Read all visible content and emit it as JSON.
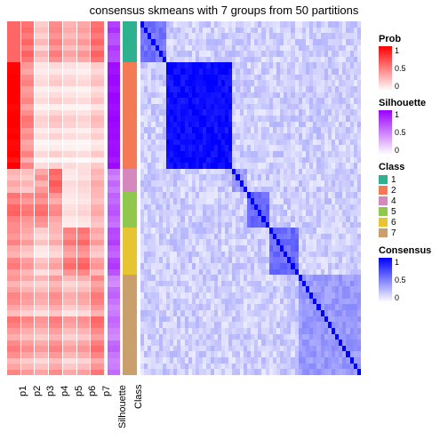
{
  "title": "consensus skmeans with 7 groups from 50 partitions",
  "p_labels": [
    "p1",
    "p2",
    "p3",
    "p4",
    "p5",
    "p6",
    "p7"
  ],
  "ann_labels": [
    "Silhouette",
    "Class"
  ],
  "n_rows": 60,
  "colors": {
    "prob_low": "#ffffff",
    "prob_high": "#ff0000",
    "sil_low": "#ffffff",
    "sil_high": "#9a00ff",
    "cons_low": "#ffffff",
    "cons_high": "#0000ff",
    "class": [
      "#2db18f",
      "#f47a56",
      "#d588be",
      "#90c84e",
      "#e7c532",
      "#c9a06b",
      "#888888"
    ]
  },
  "class_sizes": [
    7,
    18,
    4,
    6,
    8,
    17
  ],
  "silhouette": [
    0.75,
    0.82,
    0.7,
    0.68,
    0.79,
    0.73,
    0.71,
    0.95,
    0.93,
    0.97,
    0.96,
    0.92,
    0.98,
    0.97,
    0.94,
    0.96,
    0.99,
    0.97,
    0.95,
    0.96,
    0.93,
    0.94,
    0.95,
    0.9,
    0.96,
    0.55,
    0.48,
    0.6,
    0.52,
    0.62,
    0.58,
    0.65,
    0.68,
    0.6,
    0.55,
    0.72,
    0.7,
    0.76,
    0.65,
    0.6,
    0.74,
    0.78,
    0.68,
    0.5,
    0.45,
    0.58,
    0.62,
    0.55,
    0.48,
    0.52,
    0.6,
    0.57,
    0.5,
    0.46,
    0.59,
    0.63,
    0.54,
    0.49,
    0.51,
    0.58
  ],
  "partitions": [
    [
      0.6,
      0.6,
      0.6,
      0.6,
      0.6,
      0.6,
      0.6,
      0.98,
      0.99,
      1.0,
      1.0,
      1.0,
      1.0,
      1.0,
      0.97,
      0.99,
      1.0,
      1.0,
      0.98,
      1.0,
      0.96,
      0.97,
      0.99,
      0.92,
      1.0,
      0.3,
      0.25,
      0.35,
      0.28,
      0.55,
      0.48,
      0.6,
      0.62,
      0.5,
      0.45,
      0.45,
      0.4,
      0.5,
      0.35,
      0.3,
      0.48,
      0.52,
      0.38,
      0.42,
      0.3,
      0.38,
      0.48,
      0.45,
      0.35,
      0.25,
      0.55,
      0.5,
      0.4,
      0.32,
      0.46,
      0.52,
      0.44,
      0.28,
      0.36,
      0.48
    ],
    [
      0.55,
      0.58,
      0.52,
      0.6,
      0.5,
      0.62,
      0.54,
      0.4,
      0.35,
      0.45,
      0.5,
      0.38,
      0.42,
      0.48,
      0.36,
      0.44,
      0.55,
      0.52,
      0.4,
      0.46,
      0.35,
      0.38,
      0.5,
      0.32,
      0.48,
      0.25,
      0.2,
      0.3,
      0.22,
      0.48,
      0.4,
      0.52,
      0.55,
      0.42,
      0.38,
      0.35,
      0.3,
      0.4,
      0.25,
      0.2,
      0.38,
      0.42,
      0.28,
      0.35,
      0.22,
      0.3,
      0.4,
      0.38,
      0.28,
      0.18,
      0.48,
      0.42,
      0.32,
      0.25,
      0.38,
      0.45,
      0.36,
      0.2,
      0.28,
      0.4
    ],
    [
      0.2,
      0.25,
      0.18,
      0.28,
      0.15,
      0.3,
      0.22,
      0.1,
      0.08,
      0.12,
      0.15,
      0.06,
      0.1,
      0.14,
      0.05,
      0.11,
      0.18,
      0.16,
      0.08,
      0.12,
      0.04,
      0.06,
      0.15,
      0.03,
      0.14,
      0.35,
      0.45,
      0.3,
      0.4,
      0.5,
      0.42,
      0.55,
      0.58,
      0.45,
      0.4,
      0.2,
      0.15,
      0.25,
      0.1,
      0.08,
      0.22,
      0.28,
      0.12,
      0.3,
      0.18,
      0.25,
      0.35,
      0.32,
      0.22,
      0.12,
      0.42,
      0.38,
      0.28,
      0.2,
      0.33,
      0.4,
      0.3,
      0.15,
      0.24,
      0.36
    ],
    [
      0.45,
      0.48,
      0.42,
      0.5,
      0.4,
      0.52,
      0.44,
      0.15,
      0.1,
      0.18,
      0.22,
      0.08,
      0.14,
      0.2,
      0.06,
      0.16,
      0.25,
      0.22,
      0.1,
      0.18,
      0.05,
      0.08,
      0.2,
      0.04,
      0.18,
      0.6,
      0.55,
      0.65,
      0.58,
      0.4,
      0.32,
      0.45,
      0.48,
      0.35,
      0.3,
      0.3,
      0.25,
      0.35,
      0.2,
      0.15,
      0.32,
      0.38,
      0.22,
      0.4,
      0.28,
      0.35,
      0.45,
      0.42,
      0.32,
      0.22,
      0.52,
      0.48,
      0.38,
      0.3,
      0.43,
      0.5,
      0.4,
      0.25,
      0.34,
      0.46
    ],
    [
      0.3,
      0.33,
      0.27,
      0.35,
      0.25,
      0.37,
      0.29,
      0.12,
      0.08,
      0.15,
      0.18,
      0.06,
      0.11,
      0.16,
      0.05,
      0.13,
      0.2,
      0.18,
      0.08,
      0.14,
      0.04,
      0.06,
      0.16,
      0.03,
      0.15,
      0.1,
      0.08,
      0.15,
      0.12,
      0.1,
      0.08,
      0.12,
      0.15,
      0.09,
      0.07,
      0.5,
      0.45,
      0.55,
      0.4,
      0.35,
      0.52,
      0.58,
      0.42,
      0.28,
      0.16,
      0.23,
      0.33,
      0.3,
      0.2,
      0.1,
      0.4,
      0.36,
      0.26,
      0.18,
      0.31,
      0.38,
      0.28,
      0.13,
      0.22,
      0.34
    ],
    [
      0.35,
      0.38,
      0.32,
      0.4,
      0.3,
      0.42,
      0.34,
      0.1,
      0.06,
      0.12,
      0.16,
      0.05,
      0.09,
      0.14,
      0.04,
      0.11,
      0.18,
      0.15,
      0.06,
      0.12,
      0.03,
      0.05,
      0.14,
      0.02,
      0.13,
      0.14,
      0.11,
      0.18,
      0.15,
      0.12,
      0.1,
      0.15,
      0.18,
      0.11,
      0.09,
      0.55,
      0.5,
      0.6,
      0.45,
      0.4,
      0.57,
      0.62,
      0.47,
      0.32,
      0.2,
      0.27,
      0.37,
      0.34,
      0.24,
      0.14,
      0.44,
      0.4,
      0.3,
      0.22,
      0.35,
      0.42,
      0.32,
      0.17,
      0.26,
      0.38
    ],
    [
      0.55,
      0.58,
      0.52,
      0.6,
      0.5,
      0.62,
      0.54,
      0.2,
      0.15,
      0.22,
      0.26,
      0.12,
      0.18,
      0.24,
      0.1,
      0.2,
      0.28,
      0.25,
      0.14,
      0.2,
      0.08,
      0.11,
      0.22,
      0.06,
      0.21,
      0.3,
      0.26,
      0.34,
      0.29,
      0.28,
      0.24,
      0.32,
      0.35,
      0.26,
      0.22,
      0.35,
      0.3,
      0.4,
      0.25,
      0.2,
      0.37,
      0.42,
      0.27,
      0.48,
      0.36,
      0.43,
      0.53,
      0.5,
      0.4,
      0.3,
      0.6,
      0.56,
      0.46,
      0.38,
      0.51,
      0.58,
      0.48,
      0.33,
      0.42,
      0.54
    ]
  ],
  "legends": {
    "prob": {
      "title": "Prob",
      "ticks": [
        "1",
        "0.5",
        "0"
      ]
    },
    "sil": {
      "title": "Silhouette",
      "ticks": [
        "1",
        "0.5",
        "0"
      ]
    },
    "class": {
      "title": "Class",
      "labels": [
        "1",
        "2",
        "4",
        "5",
        "6",
        "7"
      ]
    },
    "cons": {
      "title": "Consensus",
      "ticks": [
        "1",
        "0.5",
        "0"
      ]
    }
  }
}
